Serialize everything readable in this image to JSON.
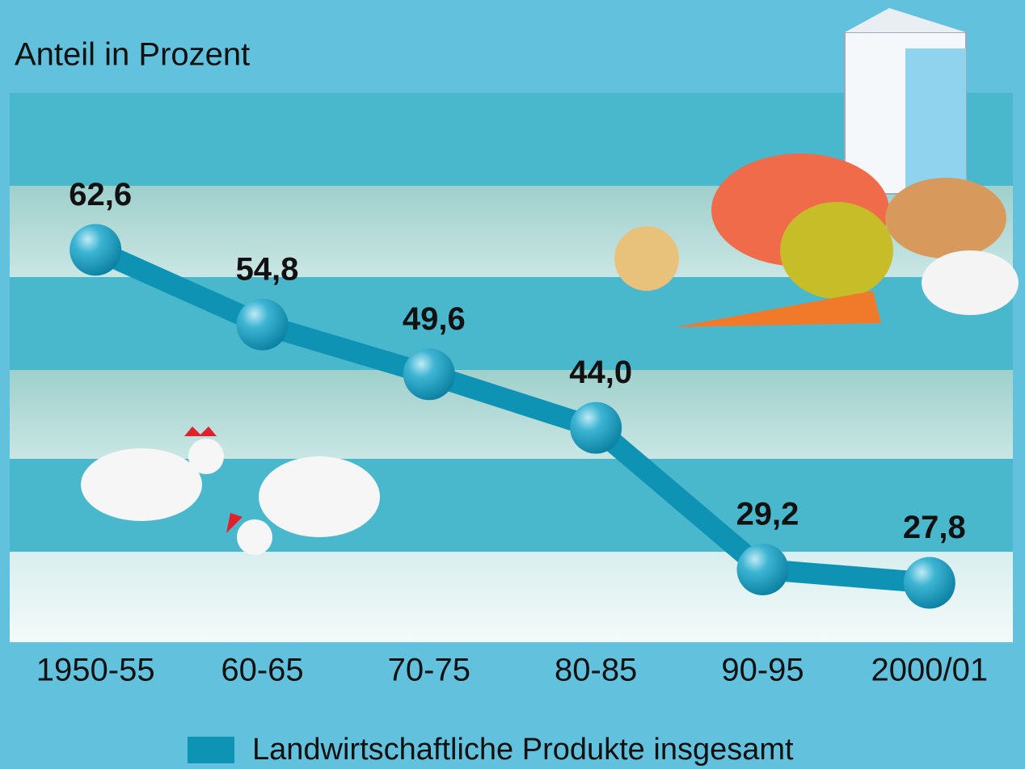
{
  "chart_data": {
    "type": "line",
    "y_axis_label": "Anteil in Prozent",
    "categories": [
      "1950-55",
      "60-65",
      "70-75",
      "80-85",
      "90-95",
      "2000/01"
    ],
    "series": [
      {
        "name": "Landwirtschaftliche Produkte insgesamt",
        "color": "#0f93b5",
        "values": [
          62.6,
          54.8,
          49.6,
          44.0,
          29.2,
          27.8
        ],
        "value_labels": [
          "62,6",
          "54,8",
          "49,6",
          "44,0",
          "29,2",
          "27,8"
        ]
      }
    ],
    "ylim": [
      21.6,
      79
    ]
  }
}
